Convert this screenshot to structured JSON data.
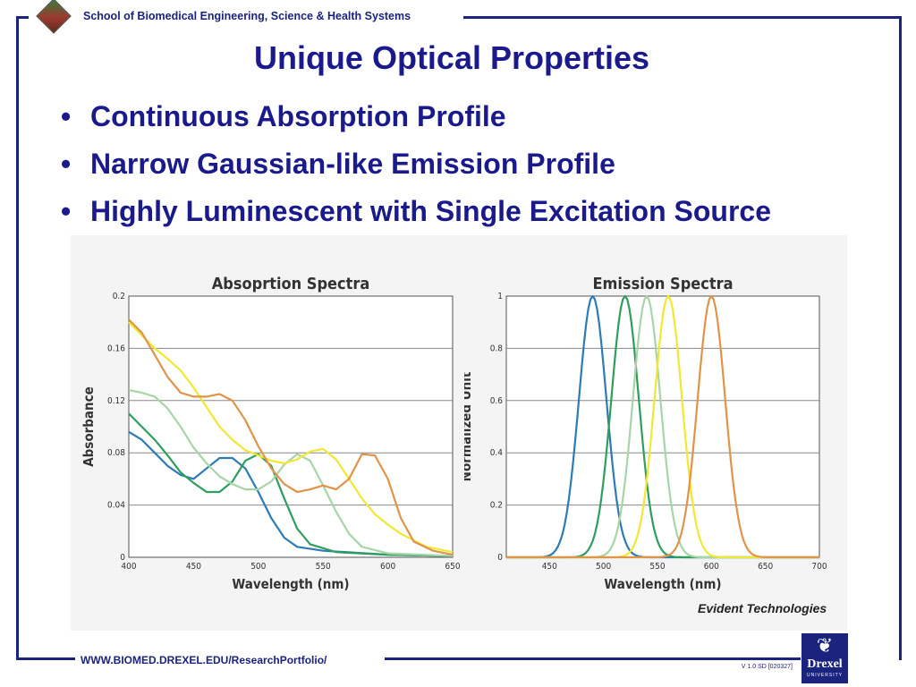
{
  "header": {
    "school_name": "School of Biomedical Engineering, Science & Health Systems"
  },
  "slide": {
    "title": "Unique Optical Properties",
    "bullets": [
      "Continuous Absorption Profile",
      "Narrow Gaussian-like Emission Profile",
      "Highly Luminescent with Single Excitation Source"
    ],
    "bullet_glyph": "•"
  },
  "figure_credit": "Evident Technologies",
  "footer": {
    "url": "WWW.BIOMED.DREXEL.EDU/ResearchPortfolio/",
    "version": "V 1.0 SD [020327]",
    "logo_name": "Drexel",
    "logo_sub": "UNIVERSITY"
  },
  "colors": {
    "brand_navy": "#1a237e",
    "title_blue": "#1a1a8c",
    "series_blue": "#2c7bb6",
    "series_green": "#2e9e5e",
    "series_light_green": "#a8d5a8",
    "series_yellow": "#f0e832",
    "series_orange": "#e0944a"
  },
  "chart_data": [
    {
      "type": "line",
      "title": "Absoprtion Spectra",
      "xlabel": "Wavelength (nm)",
      "ylabel": "Absorbance",
      "xlim": [
        400,
        650
      ],
      "ylim": [
        0,
        0.2
      ],
      "x_ticks": [
        "400",
        "450",
        "500",
        "550",
        "600",
        "650"
      ],
      "y_ticks": [
        "0",
        "0.04",
        "0.08",
        "0.12",
        "0.16",
        "0.2"
      ],
      "grid": "horizontal",
      "series": [
        {
          "color": "#2c7bb6",
          "points": [
            [
              400,
              0.096
            ],
            [
              410,
              0.09
            ],
            [
              420,
              0.08
            ],
            [
              430,
              0.07
            ],
            [
              440,
              0.063
            ],
            [
              450,
              0.06
            ],
            [
              460,
              0.068
            ],
            [
              470,
              0.076
            ],
            [
              480,
              0.076
            ],
            [
              490,
              0.068
            ],
            [
              500,
              0.05
            ],
            [
              510,
              0.03
            ],
            [
              520,
              0.015
            ],
            [
              530,
              0.008
            ],
            [
              550,
              0.005
            ],
            [
              600,
              0.002
            ],
            [
              650,
              0.001
            ]
          ]
        },
        {
          "color": "#2e9e5e",
          "points": [
            [
              400,
              0.11
            ],
            [
              410,
              0.1
            ],
            [
              420,
              0.09
            ],
            [
              430,
              0.078
            ],
            [
              440,
              0.065
            ],
            [
              450,
              0.057
            ],
            [
              460,
              0.05
            ],
            [
              470,
              0.05
            ],
            [
              480,
              0.058
            ],
            [
              490,
              0.074
            ],
            [
              500,
              0.079
            ],
            [
              510,
              0.07
            ],
            [
              520,
              0.045
            ],
            [
              530,
              0.022
            ],
            [
              540,
              0.01
            ],
            [
              560,
              0.004
            ],
            [
              600,
              0.002
            ],
            [
              650,
              0.001
            ]
          ]
        },
        {
          "color": "#a8d5a8",
          "points": [
            [
              400,
              0.128
            ],
            [
              410,
              0.126
            ],
            [
              420,
              0.123
            ],
            [
              430,
              0.114
            ],
            [
              440,
              0.1
            ],
            [
              450,
              0.084
            ],
            [
              460,
              0.072
            ],
            [
              470,
              0.062
            ],
            [
              480,
              0.056
            ],
            [
              490,
              0.052
            ],
            [
              500,
              0.052
            ],
            [
              510,
              0.058
            ],
            [
              520,
              0.071
            ],
            [
              530,
              0.079
            ],
            [
              540,
              0.074
            ],
            [
              550,
              0.055
            ],
            [
              560,
              0.035
            ],
            [
              570,
              0.018
            ],
            [
              580,
              0.008
            ],
            [
              600,
              0.003
            ],
            [
              650,
              0.001
            ]
          ]
        },
        {
          "color": "#f0e832",
          "points": [
            [
              400,
              0.18
            ],
            [
              410,
              0.17
            ],
            [
              420,
              0.16
            ],
            [
              430,
              0.152
            ],
            [
              440,
              0.143
            ],
            [
              450,
              0.13
            ],
            [
              460,
              0.115
            ],
            [
              470,
              0.1
            ],
            [
              480,
              0.09
            ],
            [
              490,
              0.082
            ],
            [
              500,
              0.078
            ],
            [
              510,
              0.074
            ],
            [
              520,
              0.072
            ],
            [
              530,
              0.075
            ],
            [
              540,
              0.081
            ],
            [
              550,
              0.083
            ],
            [
              560,
              0.075
            ],
            [
              570,
              0.06
            ],
            [
              580,
              0.045
            ],
            [
              590,
              0.033
            ],
            [
              600,
              0.025
            ],
            [
              610,
              0.018
            ],
            [
              630,
              0.008
            ],
            [
              650,
              0.004
            ]
          ]
        },
        {
          "color": "#e0944a",
          "points": [
            [
              400,
              0.182
            ],
            [
              410,
              0.172
            ],
            [
              420,
              0.155
            ],
            [
              430,
              0.138
            ],
            [
              440,
              0.126
            ],
            [
              450,
              0.123
            ],
            [
              460,
              0.123
            ],
            [
              470,
              0.125
            ],
            [
              480,
              0.12
            ],
            [
              490,
              0.105
            ],
            [
              500,
              0.085
            ],
            [
              510,
              0.068
            ],
            [
              520,
              0.056
            ],
            [
              530,
              0.05
            ],
            [
              540,
              0.052
            ],
            [
              550,
              0.055
            ],
            [
              560,
              0.052
            ],
            [
              570,
              0.06
            ],
            [
              580,
              0.079
            ],
            [
              590,
              0.078
            ],
            [
              600,
              0.06
            ],
            [
              610,
              0.03
            ],
            [
              620,
              0.012
            ],
            [
              635,
              0.005
            ],
            [
              650,
              0.002
            ]
          ]
        }
      ]
    },
    {
      "type": "line",
      "title": "Emission Spectra",
      "xlabel": "Wavelength (nm)",
      "ylabel": "Normalized Unit",
      "xlim": [
        410,
        700
      ],
      "ylim": [
        0,
        1
      ],
      "x_ticks": [
        "450",
        "500",
        "550",
        "600",
        "650",
        "700"
      ],
      "y_ticks": [
        "0",
        "0.2",
        "0.4",
        "0.6",
        "0.8",
        "1"
      ],
      "grid": "horizontal",
      "series": [
        {
          "color": "#2c7bb6",
          "peak_nm": 490,
          "fwhm_nm": 30
        },
        {
          "color": "#2e9e5e",
          "peak_nm": 520,
          "fwhm_nm": 30
        },
        {
          "color": "#a8d5a8",
          "peak_nm": 540,
          "fwhm_nm": 30
        },
        {
          "color": "#f0e832",
          "peak_nm": 560,
          "fwhm_nm": 30
        },
        {
          "color": "#e0944a",
          "peak_nm": 600,
          "fwhm_nm": 30
        }
      ]
    }
  ]
}
